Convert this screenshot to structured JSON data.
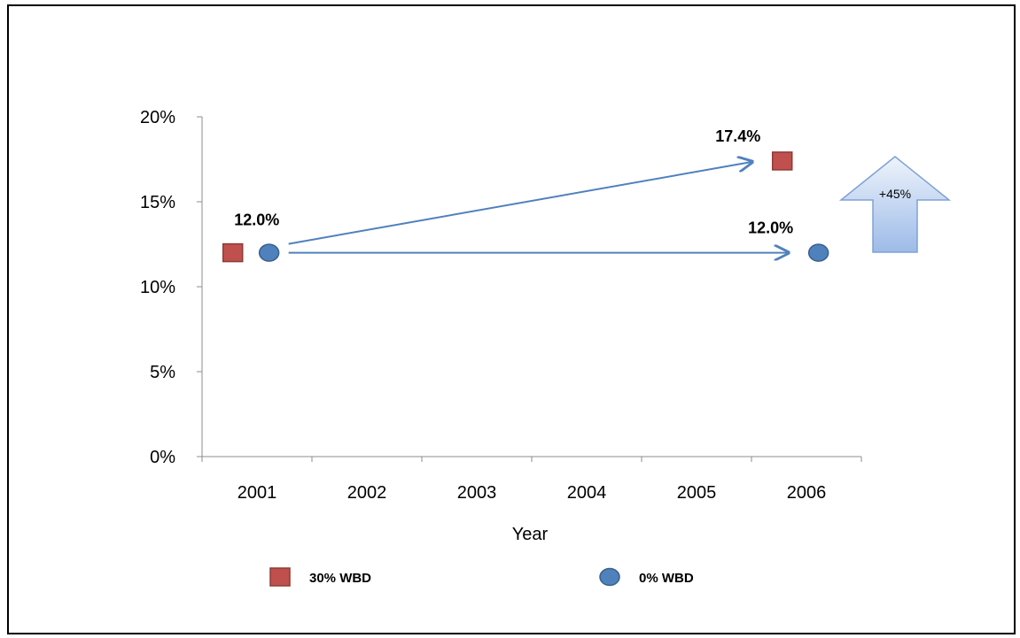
{
  "chart_data": {
    "type": "scatter",
    "categories": [
      "2001",
      "2002",
      "2003",
      "2004",
      "2005",
      "2006"
    ],
    "xlabel": "Year",
    "ylabel": "",
    "y_ticks": [
      "0%",
      "5%",
      "10%",
      "15%",
      "20%"
    ],
    "ylim": [
      0,
      20
    ],
    "series": [
      {
        "name": "30% WBD",
        "marker": "square",
        "color": "#c0504d",
        "points": [
          {
            "x": "2001",
            "y": 12.0
          },
          {
            "x": "2006",
            "y": 17.4
          }
        ]
      },
      {
        "name": "0% WBD",
        "marker": "circle",
        "color": "#4f81bd",
        "points": [
          {
            "x": "2001",
            "y": 12.0
          },
          {
            "x": "2006",
            "y": 12.0
          }
        ]
      }
    ],
    "data_labels": [
      "12.0%",
      "17.4%",
      "12.0%"
    ],
    "arrows": [
      {
        "from": {
          "x": "2001",
          "y": 12.0
        },
        "to": {
          "x": "2006",
          "y": 17.4
        }
      },
      {
        "from": {
          "x": "2001",
          "y": 12.0
        },
        "to": {
          "x": "2006",
          "y": 12.0
        }
      }
    ],
    "callout": {
      "text": "+45%",
      "shape": "up-arrow"
    },
    "legend_position": "bottom",
    "grid": false
  }
}
